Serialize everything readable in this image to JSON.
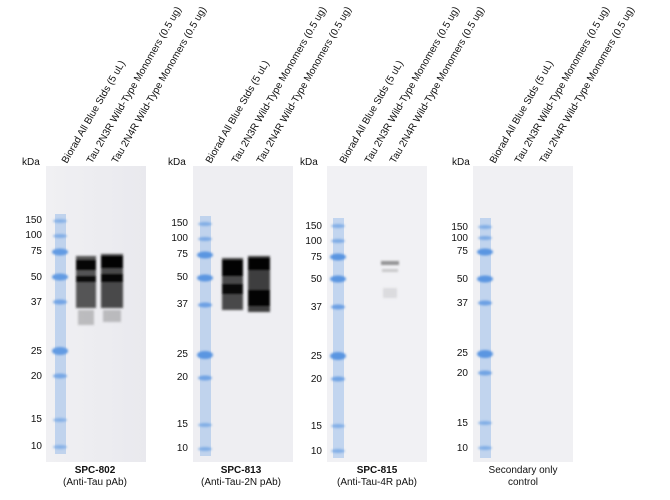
{
  "kda_label": "kDa",
  "lane_labels": [
    "Biorad All Blue Stds (5 uL)",
    "Tau 2N3R Wild-Type Monomers (0.5 ug)",
    "Tau 2N4R Wild-Type Monomers (0.5 ug)"
  ],
  "mw_markers": [
    "150",
    "100",
    "75",
    "50",
    "37",
    "25",
    "20",
    "15",
    "10"
  ],
  "panels": [
    {
      "title": "SPC-802",
      "subtitle": "(Anti-Tau pAb)"
    },
    {
      "title": "SPC-813",
      "subtitle": "(Anti-Tau-2N pAb)"
    },
    {
      "title": "SPC-815",
      "subtitle": "(Anti-Tau-4R pAb)"
    },
    {
      "title": "",
      "subtitle": "Secondary only control"
    }
  ],
  "colors": {
    "marker_band": "#4f8fe0",
    "membrane": "#eeeef1",
    "signal": "#111111"
  }
}
